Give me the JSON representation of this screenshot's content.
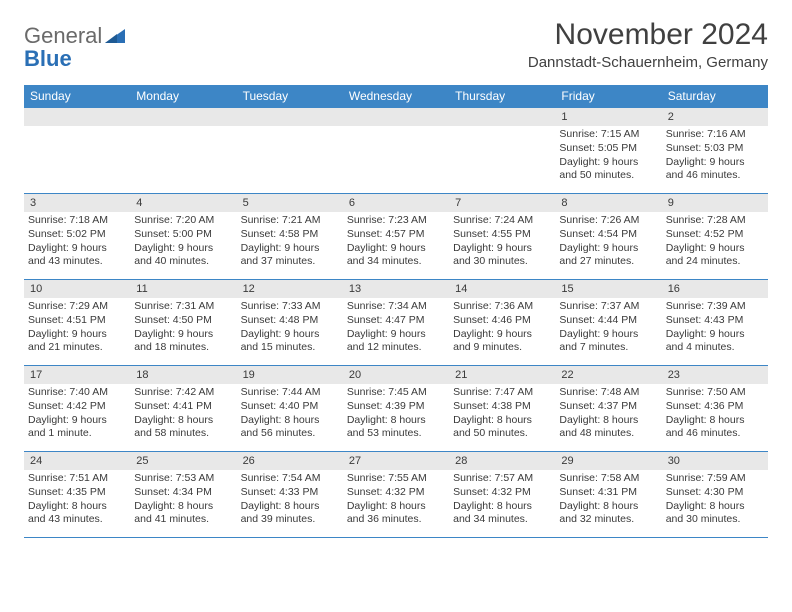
{
  "logo": {
    "word1": "General",
    "word2": "Blue",
    "triangle_color": "#2a6fb5"
  },
  "title": "November 2024",
  "location": "Dannstadt-Schauernheim, Germany",
  "header_bg": "#3d86c6",
  "header_fg": "#ffffff",
  "border_color": "#3d86c6",
  "daynum_bg": "#e8e8e8",
  "text_color": "#3a3a3a",
  "font_family": "Arial, Helvetica, sans-serif",
  "days_of_week": [
    "Sunday",
    "Monday",
    "Tuesday",
    "Wednesday",
    "Thursday",
    "Friday",
    "Saturday"
  ],
  "weeks": [
    [
      null,
      null,
      null,
      null,
      null,
      {
        "n": "1",
        "sunrise": "Sunrise: 7:15 AM",
        "sunset": "Sunset: 5:05 PM",
        "daylight": "Daylight: 9 hours and 50 minutes."
      },
      {
        "n": "2",
        "sunrise": "Sunrise: 7:16 AM",
        "sunset": "Sunset: 5:03 PM",
        "daylight": "Daylight: 9 hours and 46 minutes."
      }
    ],
    [
      {
        "n": "3",
        "sunrise": "Sunrise: 7:18 AM",
        "sunset": "Sunset: 5:02 PM",
        "daylight": "Daylight: 9 hours and 43 minutes."
      },
      {
        "n": "4",
        "sunrise": "Sunrise: 7:20 AM",
        "sunset": "Sunset: 5:00 PM",
        "daylight": "Daylight: 9 hours and 40 minutes."
      },
      {
        "n": "5",
        "sunrise": "Sunrise: 7:21 AM",
        "sunset": "Sunset: 4:58 PM",
        "daylight": "Daylight: 9 hours and 37 minutes."
      },
      {
        "n": "6",
        "sunrise": "Sunrise: 7:23 AM",
        "sunset": "Sunset: 4:57 PM",
        "daylight": "Daylight: 9 hours and 34 minutes."
      },
      {
        "n": "7",
        "sunrise": "Sunrise: 7:24 AM",
        "sunset": "Sunset: 4:55 PM",
        "daylight": "Daylight: 9 hours and 30 minutes."
      },
      {
        "n": "8",
        "sunrise": "Sunrise: 7:26 AM",
        "sunset": "Sunset: 4:54 PM",
        "daylight": "Daylight: 9 hours and 27 minutes."
      },
      {
        "n": "9",
        "sunrise": "Sunrise: 7:28 AM",
        "sunset": "Sunset: 4:52 PM",
        "daylight": "Daylight: 9 hours and 24 minutes."
      }
    ],
    [
      {
        "n": "10",
        "sunrise": "Sunrise: 7:29 AM",
        "sunset": "Sunset: 4:51 PM",
        "daylight": "Daylight: 9 hours and 21 minutes."
      },
      {
        "n": "11",
        "sunrise": "Sunrise: 7:31 AM",
        "sunset": "Sunset: 4:50 PM",
        "daylight": "Daylight: 9 hours and 18 minutes."
      },
      {
        "n": "12",
        "sunrise": "Sunrise: 7:33 AM",
        "sunset": "Sunset: 4:48 PM",
        "daylight": "Daylight: 9 hours and 15 minutes."
      },
      {
        "n": "13",
        "sunrise": "Sunrise: 7:34 AM",
        "sunset": "Sunset: 4:47 PM",
        "daylight": "Daylight: 9 hours and 12 minutes."
      },
      {
        "n": "14",
        "sunrise": "Sunrise: 7:36 AM",
        "sunset": "Sunset: 4:46 PM",
        "daylight": "Daylight: 9 hours and 9 minutes."
      },
      {
        "n": "15",
        "sunrise": "Sunrise: 7:37 AM",
        "sunset": "Sunset: 4:44 PM",
        "daylight": "Daylight: 9 hours and 7 minutes."
      },
      {
        "n": "16",
        "sunrise": "Sunrise: 7:39 AM",
        "sunset": "Sunset: 4:43 PM",
        "daylight": "Daylight: 9 hours and 4 minutes."
      }
    ],
    [
      {
        "n": "17",
        "sunrise": "Sunrise: 7:40 AM",
        "sunset": "Sunset: 4:42 PM",
        "daylight": "Daylight: 9 hours and 1 minute."
      },
      {
        "n": "18",
        "sunrise": "Sunrise: 7:42 AM",
        "sunset": "Sunset: 4:41 PM",
        "daylight": "Daylight: 8 hours and 58 minutes."
      },
      {
        "n": "19",
        "sunrise": "Sunrise: 7:44 AM",
        "sunset": "Sunset: 4:40 PM",
        "daylight": "Daylight: 8 hours and 56 minutes."
      },
      {
        "n": "20",
        "sunrise": "Sunrise: 7:45 AM",
        "sunset": "Sunset: 4:39 PM",
        "daylight": "Daylight: 8 hours and 53 minutes."
      },
      {
        "n": "21",
        "sunrise": "Sunrise: 7:47 AM",
        "sunset": "Sunset: 4:38 PM",
        "daylight": "Daylight: 8 hours and 50 minutes."
      },
      {
        "n": "22",
        "sunrise": "Sunrise: 7:48 AM",
        "sunset": "Sunset: 4:37 PM",
        "daylight": "Daylight: 8 hours and 48 minutes."
      },
      {
        "n": "23",
        "sunrise": "Sunrise: 7:50 AM",
        "sunset": "Sunset: 4:36 PM",
        "daylight": "Daylight: 8 hours and 46 minutes."
      }
    ],
    [
      {
        "n": "24",
        "sunrise": "Sunrise: 7:51 AM",
        "sunset": "Sunset: 4:35 PM",
        "daylight": "Daylight: 8 hours and 43 minutes."
      },
      {
        "n": "25",
        "sunrise": "Sunrise: 7:53 AM",
        "sunset": "Sunset: 4:34 PM",
        "daylight": "Daylight: 8 hours and 41 minutes."
      },
      {
        "n": "26",
        "sunrise": "Sunrise: 7:54 AM",
        "sunset": "Sunset: 4:33 PM",
        "daylight": "Daylight: 8 hours and 39 minutes."
      },
      {
        "n": "27",
        "sunrise": "Sunrise: 7:55 AM",
        "sunset": "Sunset: 4:32 PM",
        "daylight": "Daylight: 8 hours and 36 minutes."
      },
      {
        "n": "28",
        "sunrise": "Sunrise: 7:57 AM",
        "sunset": "Sunset: 4:32 PM",
        "daylight": "Daylight: 8 hours and 34 minutes."
      },
      {
        "n": "29",
        "sunrise": "Sunrise: 7:58 AM",
        "sunset": "Sunset: 4:31 PM",
        "daylight": "Daylight: 8 hours and 32 minutes."
      },
      {
        "n": "30",
        "sunrise": "Sunrise: 7:59 AM",
        "sunset": "Sunset: 4:30 PM",
        "daylight": "Daylight: 8 hours and 30 minutes."
      }
    ]
  ]
}
